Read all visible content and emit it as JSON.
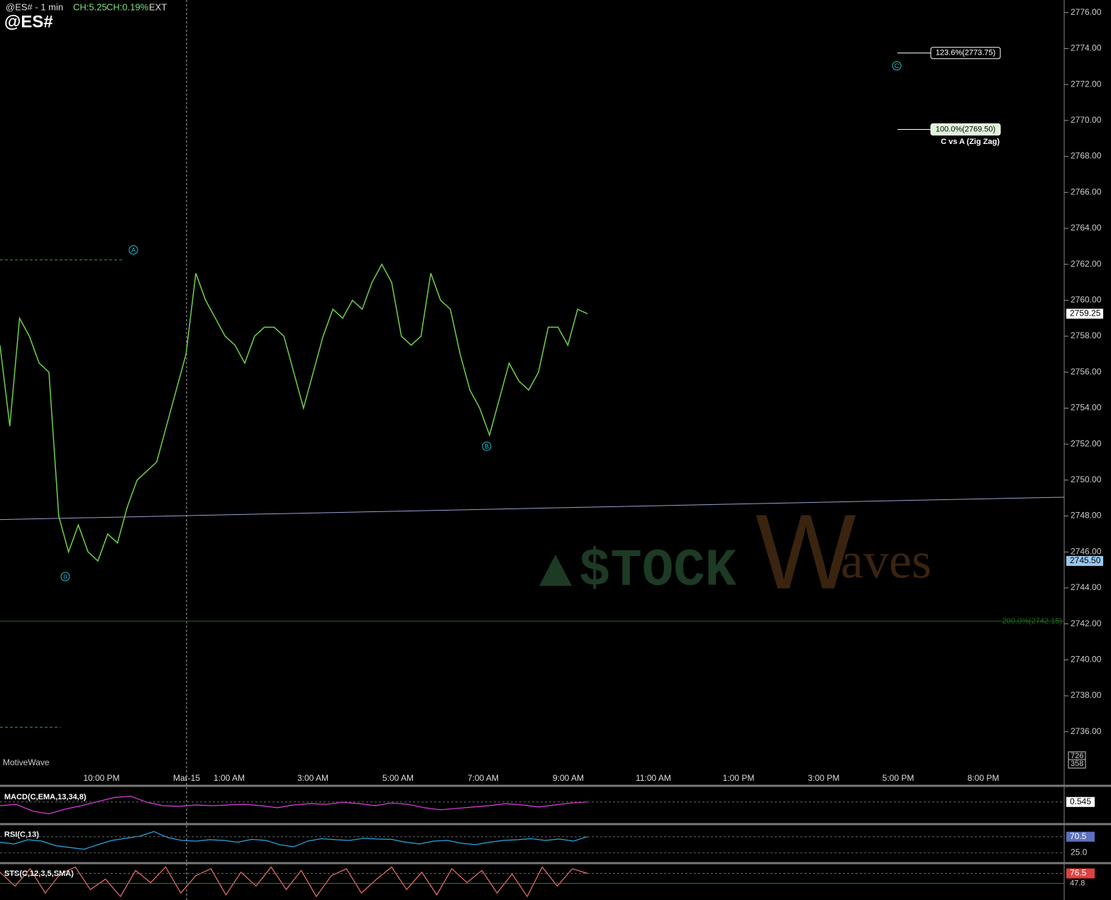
{
  "header": {
    "symbol_line": "@ES# - 1 min",
    "change": "CH:5.25",
    "change_pct": "CH:0.19%",
    "session": "EXT",
    "symbol": "@ES#"
  },
  "chart_data": [
    {
      "type": "line",
      "color": "#6fcf4a",
      "values": [
        2757.5,
        2753,
        2759,
        2758,
        2756.5,
        2756,
        2748,
        2746,
        2747.5,
        2746,
        2745.5,
        2747,
        2746.5,
        2748.5,
        2750,
        2750.5,
        2751,
        2753,
        2755,
        2757,
        2761.5,
        2760,
        2759,
        2758,
        2757.5,
        2756.5,
        2758,
        2758.5,
        2758.5,
        2758,
        2756,
        2754,
        2756,
        2758,
        2759.5,
        2759,
        2760,
        2759.5,
        2761,
        2762,
        2761,
        2758,
        2757.5,
        2758,
        2761.5,
        2760,
        2759.5,
        2757,
        2755,
        2754,
        2752.5,
        2754.5,
        2756.5,
        2755.5,
        2755,
        2756,
        2758.5,
        2758.5,
        2757.5,
        2759.5,
        2759.25
      ],
      "ylim": [
        2733.9,
        2776.7
      ],
      "yticks": [
        {
          "value": 2736,
          "label": "2736.00"
        },
        {
          "value": 2738,
          "label": "2738.00"
        },
        {
          "value": 2740,
          "label": "2740.00"
        },
        {
          "value": 2742,
          "label": "2742.00"
        },
        {
          "value": 2744,
          "label": "2744.00"
        },
        {
          "value": 2746,
          "label": "2746.00"
        },
        {
          "value": 2748,
          "label": "2748.00"
        },
        {
          "value": 2750,
          "label": "2750.00"
        },
        {
          "value": 2752,
          "label": "2752.00"
        },
        {
          "value": 2754,
          "label": "2754.00"
        },
        {
          "value": 2756,
          "label": "2756.00"
        },
        {
          "value": 2758,
          "label": "2758.00"
        },
        {
          "value": 2760,
          "label": "2760.00"
        },
        {
          "value": 2762,
          "label": "2762.00"
        },
        {
          "value": 2764,
          "label": "2764.00"
        },
        {
          "value": 2766,
          "label": "2766.00"
        },
        {
          "value": 2768,
          "label": "2768.00"
        },
        {
          "value": 2770,
          "label": "2770.00"
        },
        {
          "value": 2772,
          "label": "2772.00"
        },
        {
          "value": 2774,
          "label": "2774.00"
        },
        {
          "value": 2776,
          "label": "2776.00"
        }
      ],
      "price_tags": [
        {
          "value": 2759.25,
          "label": "2759.25"
        },
        {
          "value": 2745.5,
          "label": "2745.50"
        }
      ],
      "x_labels": [
        "10:00 PM",
        "Mar-15",
        "1:00 AM",
        "3:00 AM",
        "5:00 AM",
        "7:00 AM",
        "9:00 AM",
        "11:00 AM",
        "1:00 PM",
        "3:00 PM",
        "5:00 PM",
        "8:00 PM"
      ],
      "fib_levels": [
        {
          "value": 2773.75,
          "label": "123.6%(2773.75)"
        },
        {
          "value": 2769.5,
          "label": "100.0%(2769.50)"
        },
        {
          "value": 2742.15,
          "label": "200.0%(2742.15)"
        }
      ],
      "fib_note": "C vs A (Zig Zag)",
      "wave_labels": [
        {
          "label": "0",
          "value": 2744.63
        },
        {
          "label": "A",
          "value": 2762.8
        },
        {
          "label": "B",
          "value": 2751.88
        },
        {
          "label": "C",
          "value": 2773.04
        }
      ],
      "levels": [
        2762.25,
        2736.25
      ],
      "trendline": [
        2747.8,
        2749.05
      ],
      "volume_ticks": [
        726,
        358
      ],
      "source": "MotiveWave",
      "watermark": [
        "$TOCK",
        "W",
        "aves"
      ]
    },
    {
      "type": "line",
      "title": "MACD(C,EMA,13,34,8)",
      "color": "#e040e0",
      "ylim": [
        -2.5,
        2.5
      ],
      "values": [
        0,
        0.2,
        -0.8,
        -1.2,
        -0.5,
        0,
        0.6,
        1.2,
        1.4,
        0.5,
        0,
        -0.1,
        0.1,
        0,
        0.1,
        0.2,
        0,
        -0.3,
        0.1,
        0.3,
        0.2,
        0.5,
        0.3,
        0,
        0.4,
        0.2,
        -0.3,
        -0.6,
        -0.4,
        -0.2,
        0,
        0.3,
        0.1,
        -0.2,
        0.1,
        0.4,
        0.545
      ]
    },
    {
      "type": "line",
      "title": "RSI(C,13)",
      "color": "#29a8e0",
      "ylim": [
        0,
        100
      ],
      "yticks": [
        {
          "value": 25,
          "label": "25.0"
        }
      ],
      "values": [
        55,
        50,
        62,
        58,
        45,
        40,
        35,
        48,
        60,
        66,
        72,
        85,
        68,
        60,
        58,
        62,
        60,
        55,
        63,
        60,
        48,
        42,
        58,
        65,
        62,
        60,
        66,
        64,
        63,
        55,
        50,
        58,
        60,
        52,
        48,
        55,
        60,
        62,
        65,
        60,
        64,
        58,
        70.5
      ]
    },
    {
      "type": "line",
      "title": "STS(C,12,3,5,SMA)",
      "color": "#f07070",
      "ylim": [
        0,
        100
      ],
      "tags": [
        47.8
      ],
      "values": [
        80,
        40,
        90,
        20,
        75,
        95,
        30,
        60,
        10,
        85,
        50,
        95,
        20,
        70,
        90,
        15,
        80,
        40,
        95,
        30,
        85,
        10,
        70,
        90,
        20,
        60,
        95,
        30,
        80,
        15,
        90,
        50,
        85,
        20,
        75,
        10,
        95,
        40,
        90,
        76.5
      ]
    }
  ]
}
